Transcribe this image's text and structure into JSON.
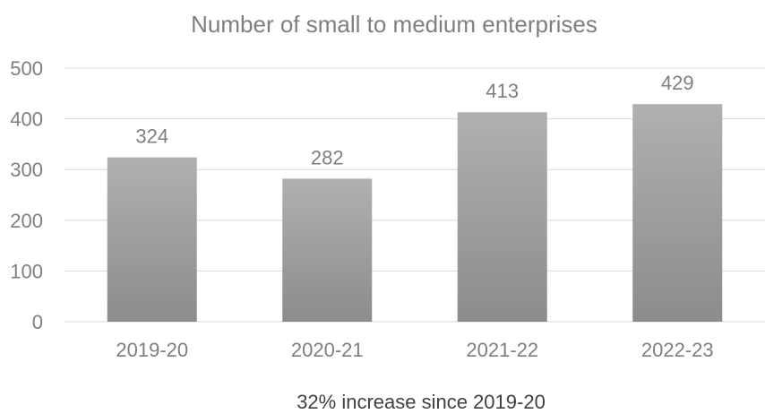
{
  "chart_data": {
    "type": "bar",
    "title": "Number of small to medium enterprises",
    "categories": [
      "2019-20",
      "2020-21",
      "2021-22",
      "2022-23"
    ],
    "values": [
      324,
      282,
      413,
      429
    ],
    "data_labels": [
      "324",
      "282",
      "413",
      "429"
    ],
    "y_ticks": [
      "0",
      "100",
      "200",
      "300",
      "400",
      "500"
    ],
    "ylim": [
      0,
      500
    ],
    "grid": true,
    "legend": "none",
    "bar_color": "#a6a6a6"
  },
  "caption": "32% increase since 2019-20"
}
